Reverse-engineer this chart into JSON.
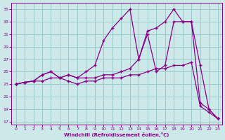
{
  "xlabel": "Windchill (Refroidissement éolien,°C)",
  "background_color": "#cce8e8",
  "line_color": "#880088",
  "grid_color": "#99cccc",
  "xlim": [
    -0.5,
    23.5
  ],
  "ylim": [
    16.5,
    36
  ],
  "xticks": [
    0,
    1,
    2,
    3,
    4,
    5,
    6,
    7,
    8,
    9,
    10,
    11,
    12,
    13,
    14,
    15,
    16,
    17,
    18,
    19,
    20,
    21,
    22,
    23
  ],
  "yticks": [
    17,
    19,
    21,
    23,
    25,
    27,
    29,
    31,
    33,
    35
  ],
  "line1_x": [
    0,
    1,
    2,
    3,
    4,
    5,
    6,
    7,
    8,
    9,
    10,
    11,
    12,
    13,
    14,
    15,
    16,
    17,
    18,
    19,
    20,
    21,
    22,
    23
  ],
  "line1_y": [
    23,
    23.3,
    23.5,
    24.5,
    25,
    24,
    24.5,
    24,
    24,
    24,
    24.5,
    24.5,
    25,
    25.5,
    27,
    31,
    25,
    26,
    33,
    33,
    33,
    26,
    19,
    17.5
  ],
  "line2_x": [
    0,
    1,
    2,
    3,
    4,
    5,
    6,
    7,
    8,
    9,
    10,
    11,
    12,
    13,
    14,
    15,
    16,
    17,
    18,
    19,
    20,
    21,
    22,
    23
  ],
  "line2_y": [
    23,
    23.3,
    23.5,
    24.5,
    25,
    24,
    24.5,
    24,
    25,
    26,
    30,
    32,
    33.5,
    35,
    27,
    31.5,
    32,
    33,
    35,
    33,
    33,
    20,
    19,
    17.5
  ],
  "line3_x": [
    0,
    1,
    2,
    3,
    4,
    5,
    6,
    7,
    8,
    9,
    10,
    11,
    12,
    13,
    14,
    15,
    16,
    17,
    18,
    19,
    20,
    21,
    22,
    23
  ],
  "line3_y": [
    23,
    23.3,
    23.5,
    23.5,
    24,
    24,
    23.5,
    23,
    23.5,
    23.5,
    24,
    24,
    24,
    24.5,
    24.5,
    25,
    25.5,
    25.5,
    26,
    26,
    26.5,
    19.5,
    18.5,
    17.5
  ]
}
